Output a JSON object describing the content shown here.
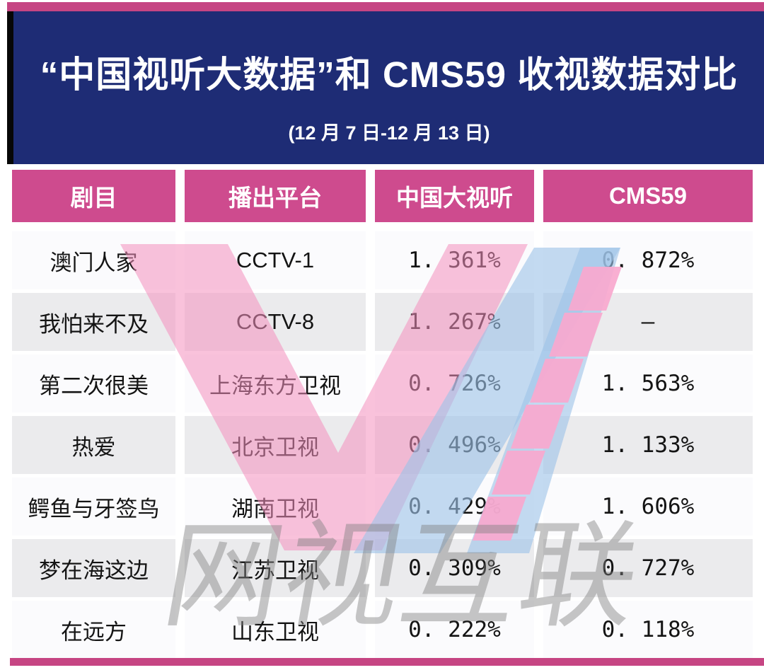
{
  "banner": {
    "title": "“中国视听大数据”和 CMS59 收视数据对比",
    "subtitle": "(12 月 7 日-12 月 13 日)"
  },
  "table": {
    "columns": [
      "剧目",
      "播出平台",
      "中国大视听",
      "CMS59"
    ],
    "rows": [
      {
        "drama": "澳门人家",
        "platform": "CCTV-1",
        "csm_bigdata": "1. 361%",
        "cms59": "0. 872%"
      },
      {
        "drama": "我怕来不及",
        "platform": "CCTV-8",
        "csm_bigdata": "1. 267%",
        "cms59": "–"
      },
      {
        "drama": "第二次很美",
        "platform": "上海东方卫视",
        "csm_bigdata": "0. 726%",
        "cms59": "1. 563%"
      },
      {
        "drama": "热爱",
        "platform": "北京卫视",
        "csm_bigdata": "0. 496%",
        "cms59": "1. 133%"
      },
      {
        "drama": "鳄鱼与牙签鸟",
        "platform": "湖南卫视",
        "csm_bigdata": "0. 429%",
        "cms59": "1. 606%"
      },
      {
        "drama": "梦在海这边",
        "platform": "江苏卫视",
        "csm_bigdata": "0. 309%",
        "cms59": "0. 727%"
      },
      {
        "drama": "在远方",
        "platform": "山东卫视",
        "csm_bigdata": "0. 222%",
        "cms59": "0. 118%"
      }
    ]
  },
  "chart_data": {
    "type": "table",
    "title": "“中国视听大数据”和 CMS59 收视数据对比",
    "subtitle": "(12 月 7 日-12 月 13 日)",
    "columns": [
      "剧目",
      "播出平台",
      "中国大视听",
      "CMS59"
    ],
    "rows": [
      [
        "澳门人家",
        "CCTV-1",
        "1.361%",
        "0.872%"
      ],
      [
        "我怕来不及",
        "CCTV-8",
        "1.267%",
        "–"
      ],
      [
        "第二次很美",
        "上海东方卫视",
        "0.726%",
        "1.563%"
      ],
      [
        "热爱",
        "北京卫视",
        "0.496%",
        "1.133%"
      ],
      [
        "鳄鱼与牙签鸟",
        "湖南卫视",
        "0.429%",
        "1.606%"
      ],
      [
        "梦在海这边",
        "江苏卫视",
        "0.309%",
        "0.727%"
      ],
      [
        "在远方",
        "山东卫视",
        "0.222%",
        "0.118%"
      ]
    ]
  },
  "watermark": {
    "logo_letter": "W",
    "text": "网视互联",
    "pink": "#F48FBE",
    "blue": "#9EC4E8",
    "dash_pink": "#F9A8CE",
    "gray": "#808080"
  },
  "colors": {
    "banner_navy": "#1E2C75",
    "header_magenta": "#CE4B8E",
    "strip_magenta": "#C64583",
    "row_white": "#FBFBFD",
    "row_gray": "#EBEBED",
    "text_black": "#141414",
    "text_white": "#FFFFFF"
  }
}
